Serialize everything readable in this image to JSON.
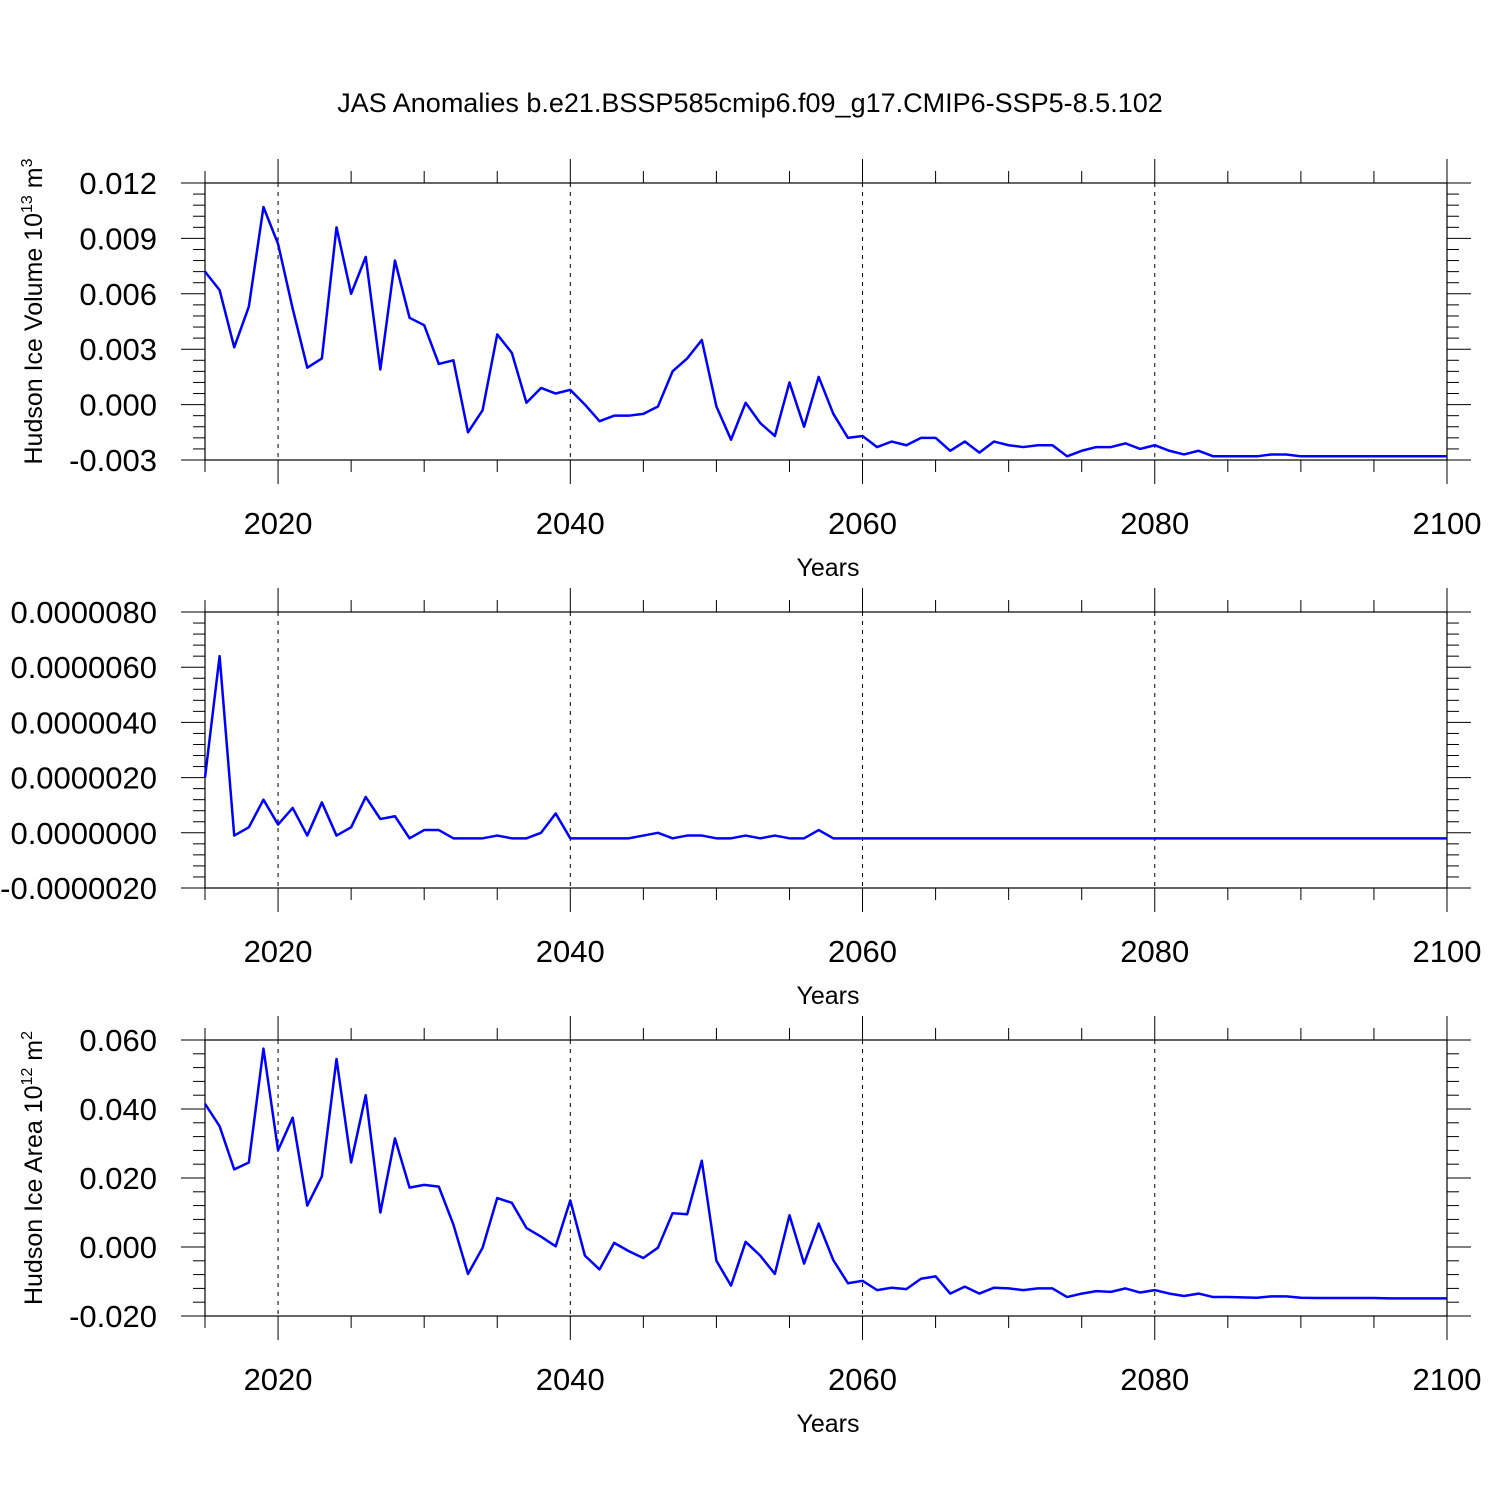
{
  "title": "JAS Anomalies b.e21.BSSP585cmip6.f09_g17.CMIP6-SSP5-8.5.102",
  "line_color": "#0000ff",
  "chart_data": [
    {
      "type": "line",
      "xlabel": "Years",
      "ylabel": {
        "base": "Hudson Ice Volume 10",
        "exp": "13",
        "unit": " m",
        "unit_exp": "3"
      },
      "xlim": [
        2015,
        2100
      ],
      "ylim": [
        -0.003,
        0.012
      ],
      "grid": "vertical dashed at major x ticks",
      "x_ticks": [
        2020,
        2040,
        2060,
        2080,
        2100
      ],
      "y_ticks": [
        -0.003,
        0.0,
        0.003,
        0.006,
        0.009,
        0.012
      ],
      "y_tick_labels": [
        "-0.003",
        "0.000",
        "0.003",
        "0.006",
        "0.009",
        "0.012"
      ],
      "start_year": 2015,
      "values": [
        0.0072,
        0.0062,
        0.0031,
        0.0053,
        0.0107,
        0.0087,
        0.0052,
        0.002,
        0.0025,
        0.0096,
        0.006,
        0.008,
        0.0019,
        0.0078,
        0.0047,
        0.0043,
        0.0022,
        0.0024,
        -0.0015,
        -0.0003,
        0.0038,
        0.0028,
        0.0001,
        0.0009,
        0.0006,
        0.0008,
        0.0,
        -0.0009,
        -0.0006,
        -0.0006,
        -0.0005,
        -0.0001,
        0.0018,
        0.0025,
        0.0035,
        -0.0001,
        -0.0019,
        0.0001,
        -0.001,
        -0.0017,
        0.0012,
        -0.0012,
        0.0015,
        -0.0005,
        -0.0018,
        -0.0017,
        -0.0023,
        -0.002,
        -0.0022,
        -0.0018,
        -0.0018,
        -0.0025,
        -0.002,
        -0.0026,
        -0.002,
        -0.0022,
        -0.0023,
        -0.0022,
        -0.0022,
        -0.0028,
        -0.0025,
        -0.0023,
        -0.0023,
        -0.0021,
        -0.0024,
        -0.0022,
        -0.0025,
        -0.0027,
        -0.0025,
        -0.0028,
        -0.0028,
        -0.0028,
        -0.0028,
        -0.0027,
        -0.0027,
        -0.0028,
        -0.0028,
        -0.0028,
        -0.0028,
        -0.0028,
        -0.0028,
        -0.0028,
        -0.0028,
        -0.0028,
        -0.0028,
        -0.0028
      ]
    },
    {
      "type": "line",
      "xlabel": "Years",
      "ylabel": null,
      "xlim": [
        2015,
        2100
      ],
      "ylim": [
        -2e-06,
        8e-06
      ],
      "grid": "vertical dashed at major x ticks",
      "x_ticks": [
        2020,
        2040,
        2060,
        2080,
        2100
      ],
      "y_ticks": [
        -2e-06,
        0.0,
        2e-06,
        4e-06,
        6e-06,
        8e-06
      ],
      "y_tick_labels": [
        "-0.0000020",
        "0.0000000",
        "0.0000020",
        "0.0000040",
        "0.0000060",
        "0.0000080"
      ],
      "start_year": 2015,
      "values": [
        2e-06,
        6.4e-06,
        -1e-07,
        2e-07,
        1.2e-06,
        3e-07,
        9e-07,
        -1e-07,
        1.1e-06,
        -1e-07,
        2e-07,
        1.3e-06,
        5e-07,
        6e-07,
        -2e-07,
        1e-07,
        1e-07,
        -2e-07,
        -2e-07,
        -2e-07,
        -1e-07,
        -2e-07,
        -2e-07,
        0.0,
        7e-07,
        -2e-07,
        -2e-07,
        -2e-07,
        -2e-07,
        -2e-07,
        -1e-07,
        0.0,
        -2e-07,
        -1e-07,
        -1e-07,
        -2e-07,
        -2e-07,
        -1e-07,
        -2e-07,
        -1e-07,
        -2e-07,
        -2e-07,
        1e-07,
        -2e-07,
        -2e-07,
        -2e-07,
        -2e-07,
        -2e-07,
        -2e-07,
        -2e-07,
        -2e-07,
        -2e-07,
        -2e-07,
        -2e-07,
        -2e-07,
        -2e-07,
        -2e-07,
        -2e-07,
        -2e-07,
        -2e-07,
        -2e-07,
        -2e-07,
        -2e-07,
        -2e-07,
        -2e-07,
        -2e-07,
        -2e-07,
        -2e-07,
        -2e-07,
        -2e-07,
        -2e-07,
        -2e-07,
        -2e-07,
        -2e-07,
        -2e-07,
        -2e-07,
        -2e-07,
        -2e-07,
        -2e-07,
        -2e-07,
        -2e-07,
        -2e-07,
        -2e-07,
        -2e-07,
        -2e-07,
        -2e-07
      ]
    },
    {
      "type": "line",
      "xlabel": "Years",
      "ylabel": {
        "base": "Hudson Ice Area 10",
        "exp": "12",
        "unit": " m",
        "unit_exp": "2"
      },
      "xlim": [
        2015,
        2100
      ],
      "ylim": [
        -0.02,
        0.06
      ],
      "grid": "vertical dashed at major x ticks",
      "x_ticks": [
        2020,
        2040,
        2060,
        2080,
        2100
      ],
      "y_ticks": [
        -0.02,
        0.0,
        0.02,
        0.04,
        0.06
      ],
      "y_tick_labels": [
        "-0.020",
        "0.000",
        "0.020",
        "0.040",
        "0.060"
      ],
      "start_year": 2015,
      "values": [
        0.0415,
        0.035,
        0.0225,
        0.0245,
        0.0575,
        0.028,
        0.0375,
        0.012,
        0.0205,
        0.0545,
        0.0245,
        0.044,
        0.01,
        0.0315,
        0.0172,
        0.018,
        0.0175,
        0.0065,
        -0.0078,
        -0.0002,
        0.0142,
        0.0128,
        0.0055,
        0.003,
        0.0002,
        0.0135,
        -0.0025,
        -0.0065,
        0.0012,
        -0.0012,
        -0.0032,
        -0.0002,
        0.0098,
        0.0095,
        0.025,
        -0.004,
        -0.0112,
        0.0015,
        -0.0025,
        -0.0078,
        0.0092,
        -0.0048,
        0.0068,
        -0.0038,
        -0.0105,
        -0.0098,
        -0.0125,
        -0.0118,
        -0.0122,
        -0.0092,
        -0.0085,
        -0.0135,
        -0.0115,
        -0.0135,
        -0.0118,
        -0.012,
        -0.0125,
        -0.012,
        -0.012,
        -0.0145,
        -0.0135,
        -0.0128,
        -0.013,
        -0.012,
        -0.0132,
        -0.0125,
        -0.0135,
        -0.0142,
        -0.0135,
        -0.0145,
        -0.0145,
        -0.0146,
        -0.0147,
        -0.0143,
        -0.0143,
        -0.0147,
        -0.0148,
        -0.0148,
        -0.0148,
        -0.0148,
        -0.0148,
        -0.0149,
        -0.0149,
        -0.0149,
        -0.0149,
        -0.0149
      ]
    }
  ]
}
